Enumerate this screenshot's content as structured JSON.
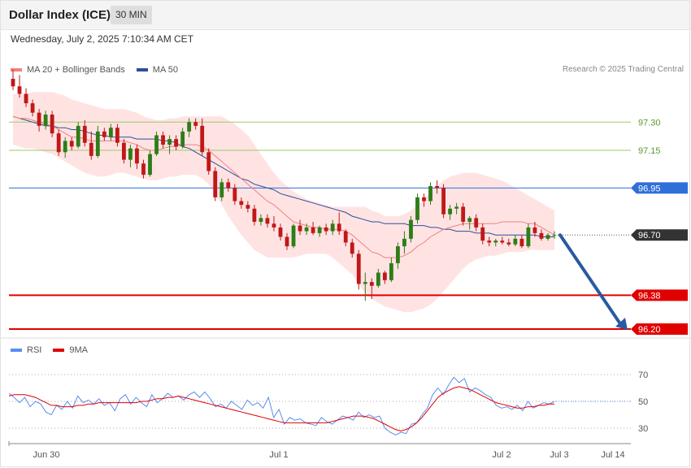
{
  "header": {
    "title": "Dollar Index (ICE)",
    "timeframe": "30 MIN",
    "datetime": "Wednesday, July 2, 2025 7:10:34 AM CET",
    "credit": "Research © 2025 Trading Central"
  },
  "legend_main": [
    {
      "label": "MA 20 + Bollinger Bands",
      "color": "#f08080"
    },
    {
      "label": "MA 50",
      "color": "#2a4f9b"
    }
  ],
  "legend_rsi": [
    {
      "label": "RSI",
      "color": "#5b8def"
    },
    {
      "label": "9MA",
      "color": "#e00000"
    }
  ],
  "colors": {
    "up": "#2e7d18",
    "down": "#c01818",
    "resistance": "#9ccb6a",
    "pivot": "#2f6fd8",
    "support": "#e00000",
    "current": "#333333",
    "arrow": "#2a5aa0",
    "band": "#ffd9d9"
  },
  "chart_data": [
    {
      "type": "candlestick",
      "title": "Dollar Index (ICE)",
      "ylim": [
        96.15,
        97.45
      ],
      "x_ticks": [
        "Jun 30",
        "Jul 1",
        "Jul 2",
        "Jul 3",
        "Jul 14"
      ],
      "levels": [
        {
          "value": 97.3,
          "label": "97.30",
          "kind": "resistance"
        },
        {
          "value": 97.15,
          "label": "97.15",
          "kind": "resistance"
        },
        {
          "value": 96.95,
          "label": "96.95",
          "kind": "pivot"
        },
        {
          "value": 96.7,
          "label": "96.70",
          "kind": "current"
        },
        {
          "value": 96.38,
          "label": "96.38",
          "kind": "support"
        },
        {
          "value": 96.2,
          "label": "96.20",
          "kind": "support"
        }
      ],
      "arrow": {
        "from": 96.7,
        "to": 96.2
      },
      "candles": [
        [
          97.53,
          97.58,
          97.47,
          97.49
        ],
        [
          97.49,
          97.55,
          97.43,
          97.45
        ],
        [
          97.45,
          97.48,
          97.38,
          97.4
        ],
        [
          97.4,
          97.42,
          97.33,
          97.35
        ],
        [
          97.35,
          97.37,
          97.25,
          97.28
        ],
        [
          97.28,
          97.36,
          97.26,
          97.34
        ],
        [
          97.34,
          97.36,
          97.22,
          97.24
        ],
        [
          97.24,
          97.26,
          97.12,
          97.14
        ],
        [
          97.14,
          97.22,
          97.11,
          97.2
        ],
        [
          97.2,
          97.22,
          97.15,
          97.17
        ],
        [
          97.17,
          97.3,
          97.16,
          97.28
        ],
        [
          97.28,
          97.31,
          97.17,
          97.19
        ],
        [
          97.19,
          97.25,
          97.1,
          97.12
        ],
        [
          97.12,
          97.28,
          97.11,
          97.25
        ],
        [
          97.25,
          97.27,
          97.2,
          97.22
        ],
        [
          97.22,
          97.29,
          97.2,
          97.27
        ],
        [
          97.27,
          97.29,
          97.17,
          97.19
        ],
        [
          97.19,
          97.21,
          97.08,
          97.1
        ],
        [
          97.1,
          97.18,
          97.06,
          97.16
        ],
        [
          97.16,
          97.18,
          97.05,
          97.08
        ],
        [
          97.08,
          97.1,
          97.0,
          97.02
        ],
        [
          97.02,
          97.15,
          97.01,
          97.13
        ],
        [
          97.13,
          97.25,
          97.12,
          97.23
        ],
        [
          97.23,
          97.25,
          97.16,
          97.18
        ],
        [
          97.18,
          97.23,
          97.13,
          97.21
        ],
        [
          97.21,
          97.23,
          97.15,
          97.17
        ],
        [
          97.17,
          97.27,
          97.16,
          97.25
        ],
        [
          97.25,
          97.32,
          97.22,
          97.3
        ],
        [
          97.3,
          97.32,
          97.26,
          97.28
        ],
        [
          97.28,
          97.32,
          97.12,
          97.14
        ],
        [
          97.14,
          97.16,
          97.02,
          97.04
        ],
        [
          97.04,
          97.06,
          96.88,
          96.9
        ],
        [
          96.9,
          97.0,
          96.88,
          96.98
        ],
        [
          96.98,
          97.0,
          96.93,
          96.95
        ],
        [
          96.95,
          96.97,
          96.86,
          96.88
        ],
        [
          96.88,
          96.9,
          96.84,
          96.86
        ],
        [
          96.86,
          96.88,
          96.82,
          96.84
        ],
        [
          96.84,
          96.86,
          96.75,
          96.77
        ],
        [
          96.77,
          96.81,
          96.75,
          96.79
        ],
        [
          96.79,
          96.81,
          96.74,
          96.76
        ],
        [
          96.76,
          96.8,
          96.72,
          96.74
        ],
        [
          96.74,
          96.76,
          96.67,
          96.69
        ],
        [
          96.69,
          96.71,
          96.62,
          96.64
        ],
        [
          96.64,
          96.76,
          96.63,
          96.75
        ],
        [
          96.75,
          96.78,
          96.7,
          96.72
        ],
        [
          96.72,
          96.76,
          96.7,
          96.74
        ],
        [
          96.74,
          96.77,
          96.7,
          96.71
        ],
        [
          96.71,
          96.75,
          96.69,
          96.74
        ],
        [
          96.74,
          96.76,
          96.7,
          96.72
        ],
        [
          96.72,
          96.78,
          96.7,
          96.76
        ],
        [
          96.76,
          96.82,
          96.7,
          96.72
        ],
        [
          96.72,
          96.73,
          96.64,
          96.66
        ],
        [
          96.66,
          96.68,
          96.58,
          96.6
        ],
        [
          96.6,
          96.62,
          96.41,
          96.44
        ],
        [
          96.44,
          96.5,
          96.35,
          96.45
        ],
        [
          96.45,
          96.47,
          96.36,
          96.43
        ],
        [
          96.43,
          96.52,
          96.42,
          96.5
        ],
        [
          96.5,
          96.51,
          96.44,
          96.46
        ],
        [
          96.46,
          96.58,
          96.45,
          96.55
        ],
        [
          96.55,
          96.66,
          96.52,
          96.64
        ],
        [
          96.64,
          96.72,
          96.6,
          96.68
        ],
        [
          96.68,
          96.8,
          96.66,
          96.78
        ],
        [
          96.78,
          96.92,
          96.76,
          96.9
        ],
        [
          96.9,
          96.92,
          96.85,
          96.88
        ],
        [
          96.88,
          96.98,
          96.86,
          96.96
        ],
        [
          96.96,
          96.99,
          96.92,
          96.95
        ],
        [
          96.95,
          96.97,
          96.79,
          96.81
        ],
        [
          96.81,
          96.86,
          96.78,
          96.84
        ],
        [
          96.84,
          96.87,
          96.81,
          96.85
        ],
        [
          96.85,
          96.87,
          96.75,
          96.77
        ],
        [
          96.77,
          96.8,
          96.73,
          96.79
        ],
        [
          96.79,
          96.81,
          96.72,
          96.74
        ],
        [
          96.74,
          96.76,
          96.65,
          96.67
        ],
        [
          96.67,
          96.69,
          96.64,
          96.66
        ],
        [
          96.66,
          96.68,
          96.64,
          96.67
        ],
        [
          96.67,
          96.69,
          96.65,
          96.66
        ],
        [
          96.66,
          96.68,
          96.64,
          96.65
        ],
        [
          96.65,
          96.7,
          96.64,
          96.68
        ],
        [
          96.68,
          96.7,
          96.63,
          96.64
        ],
        [
          96.64,
          96.76,
          96.63,
          96.74
        ],
        [
          96.74,
          96.77,
          96.69,
          96.71
        ],
        [
          96.71,
          96.73,
          96.67,
          96.68
        ],
        [
          96.68,
          96.71,
          96.67,
          96.7
        ],
        [
          96.7,
          96.72,
          96.68,
          96.7
        ]
      ],
      "ma20": [
        97.33,
        97.32,
        97.32,
        97.31,
        97.3,
        97.29,
        97.28,
        97.26,
        97.24,
        97.22,
        97.22,
        97.21,
        97.2,
        97.2,
        97.2,
        97.2,
        97.2,
        97.2,
        97.19,
        97.18,
        97.16,
        97.15,
        97.15,
        97.16,
        97.17,
        97.17,
        97.18,
        97.18,
        97.18,
        97.17,
        97.15,
        97.12,
        97.09,
        97.06,
        97.03,
        97.0,
        96.97,
        96.94,
        96.91,
        96.88,
        96.86,
        96.83,
        96.8,
        96.77,
        96.76,
        96.75,
        96.74,
        96.74,
        96.73,
        96.73,
        96.73,
        96.72,
        96.7,
        96.67,
        96.64,
        96.61,
        96.6,
        96.58,
        96.58,
        96.58,
        96.59,
        96.61,
        96.64,
        96.66,
        96.69,
        96.71,
        96.73,
        96.74,
        96.75,
        96.76,
        96.76,
        96.76,
        96.76,
        96.76,
        96.76,
        96.77,
        96.77,
        96.77,
        96.77,
        96.76,
        96.76,
        96.74,
        96.72,
        96.7
      ],
      "ma50": [
        97.33,
        97.32,
        97.31,
        97.3,
        97.29,
        97.28,
        97.28,
        97.27,
        97.27,
        97.26,
        97.26,
        97.25,
        97.24,
        97.23,
        97.23,
        97.22,
        97.22,
        97.22,
        97.22,
        97.21,
        97.21,
        97.21,
        97.21,
        97.2,
        97.2,
        97.19,
        97.17,
        97.16,
        97.14,
        97.12,
        97.1,
        97.08,
        97.06,
        97.04,
        97.02,
        97.0,
        96.99,
        96.97,
        96.96,
        96.95,
        96.94,
        96.92,
        96.91,
        96.9,
        96.89,
        96.88,
        96.87,
        96.86,
        96.85,
        96.84,
        96.83,
        96.82,
        96.8,
        96.79,
        96.78,
        96.77,
        96.77,
        96.76,
        96.76,
        96.76,
        96.76,
        96.75,
        96.75,
        96.75,
        96.74,
        96.74,
        96.73,
        96.73,
        96.72,
        96.72,
        96.72,
        96.71,
        96.71,
        96.71,
        96.7,
        96.7,
        96.7,
        96.7,
        96.7,
        96.7,
        96.7,
        96.69,
        96.69,
        96.69
      ],
      "band_upper": [
        97.45,
        97.45,
        97.45,
        97.46,
        97.46,
        97.46,
        97.46,
        97.45,
        97.44,
        97.42,
        97.41,
        97.4,
        97.39,
        97.38,
        97.37,
        97.37,
        97.37,
        97.37,
        97.36,
        97.35,
        97.33,
        97.32,
        97.31,
        97.31,
        97.32,
        97.32,
        97.33,
        97.33,
        97.33,
        97.33,
        97.33,
        97.33,
        97.33,
        97.31,
        97.29,
        97.26,
        97.23,
        97.18,
        97.13,
        97.08,
        97.03,
        96.99,
        96.96,
        96.93,
        96.91,
        96.89,
        96.88,
        96.87,
        96.86,
        96.85,
        96.85,
        96.85,
        96.85,
        96.85,
        96.85,
        96.83,
        96.82,
        96.8,
        96.8,
        96.8,
        96.81,
        96.83,
        96.86,
        96.89,
        96.93,
        96.96,
        96.99,
        97.01,
        97.02,
        97.03,
        97.03,
        97.03,
        97.02,
        97.01,
        97.0,
        96.99,
        96.97,
        96.95,
        96.93,
        96.91,
        96.89,
        96.87,
        96.85,
        96.83
      ],
      "band_lower": [
        97.18,
        97.17,
        97.16,
        97.16,
        97.15,
        97.14,
        97.13,
        97.11,
        97.09,
        97.07,
        97.05,
        97.03,
        97.02,
        97.01,
        97.01,
        97.02,
        97.03,
        97.03,
        97.02,
        97.01,
        97.0,
        96.99,
        96.99,
        97.0,
        97.01,
        97.01,
        97.02,
        97.02,
        97.02,
        97.0,
        96.97,
        96.92,
        96.86,
        96.8,
        96.75,
        96.7,
        96.66,
        96.62,
        96.6,
        96.58,
        96.58,
        96.58,
        96.58,
        96.58,
        96.59,
        96.6,
        96.6,
        96.6,
        96.6,
        96.58,
        96.55,
        96.52,
        96.49,
        96.44,
        96.39,
        96.36,
        96.34,
        96.32,
        96.31,
        96.3,
        96.29,
        96.29,
        96.3,
        96.31,
        96.33,
        96.36,
        96.4,
        96.44,
        96.48,
        96.52,
        96.55,
        96.57,
        96.58,
        96.59,
        96.59,
        96.6,
        96.61,
        96.61,
        96.61,
        96.62,
        96.62,
        96.62,
        96.62,
        96.62
      ]
    },
    {
      "type": "line",
      "title": "RSI",
      "ylim": [
        20,
        80
      ],
      "y_ticks": [
        70,
        50,
        30
      ],
      "series": [
        {
          "name": "RSI",
          "color": "#5b8def",
          "values": [
            56,
            53,
            49,
            53,
            46,
            50,
            48,
            42,
            40,
            47,
            44,
            50,
            45,
            54,
            49,
            51,
            48,
            52,
            47,
            49,
            43,
            52,
            55,
            48,
            53,
            49,
            46,
            55,
            49,
            52,
            56,
            53,
            54,
            51,
            55,
            57,
            53,
            57,
            52,
            46,
            48,
            45,
            50,
            47,
            44,
            51,
            47,
            49,
            45,
            53,
            38,
            44,
            33,
            38,
            36,
            37,
            34,
            33,
            32,
            38,
            35,
            33,
            36,
            39,
            38,
            36,
            42,
            38,
            40,
            38,
            39,
            30,
            27,
            25,
            27,
            26,
            33,
            34,
            40,
            45,
            55,
            60,
            55,
            62,
            68,
            64,
            67,
            57,
            60,
            58,
            55,
            53,
            47,
            45,
            46,
            44,
            47,
            43,
            50,
            45,
            47,
            49,
            48,
            50
          ]
        },
        {
          "name": "9MA",
          "color": "#e00000",
          "values": [
            54,
            55,
            55,
            55,
            54,
            53,
            51,
            49,
            47,
            47,
            46,
            46,
            46,
            47,
            47,
            48,
            48,
            49,
            49,
            49,
            49,
            49,
            49,
            49,
            49,
            50,
            50,
            51,
            52,
            52,
            53,
            53,
            54,
            53,
            52,
            51,
            50,
            49,
            48,
            47,
            46,
            45,
            44,
            43,
            42,
            41,
            40,
            39,
            38,
            37,
            36,
            35,
            34,
            34,
            34,
            34,
            34,
            34,
            34,
            34,
            34,
            35,
            36,
            37,
            38,
            39,
            39,
            39,
            38,
            37,
            35,
            33,
            31,
            29,
            28,
            29,
            31,
            34,
            38,
            43,
            48,
            53,
            56,
            58,
            60,
            61,
            60,
            59,
            57,
            55,
            53,
            51,
            49,
            48,
            47,
            46,
            45,
            45,
            46,
            46,
            47,
            47,
            48,
            48
          ]
        }
      ]
    }
  ]
}
